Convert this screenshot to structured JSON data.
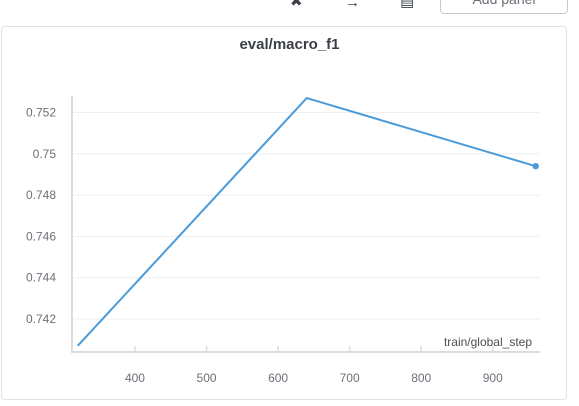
{
  "toolbar": {
    "icons": [
      "pin-icon",
      "arrow-icon",
      "layout-icon"
    ],
    "add_panel_label": "Add panel"
  },
  "chart_data": {
    "type": "line",
    "title": "eval/macro_f1",
    "xlabel": "train/global_step",
    "ylabel": "",
    "xlim": [
      312,
      966
    ],
    "ylim": [
      0.7404,
      0.7528
    ],
    "x_ticks": [
      400,
      500,
      600,
      700,
      800,
      900
    ],
    "y_ticks": [
      0.742,
      0.744,
      0.746,
      0.748,
      0.75,
      0.752
    ],
    "y_tick_labels": [
      "0.742",
      "0.744",
      "0.746",
      "0.748",
      "0.75",
      "0.752"
    ],
    "grid": true,
    "series": [
      {
        "x": [
          320,
          640,
          960
        ],
        "y": [
          0.7407,
          0.7527,
          0.7494
        ],
        "color": "#4a9bd9"
      }
    ]
  }
}
